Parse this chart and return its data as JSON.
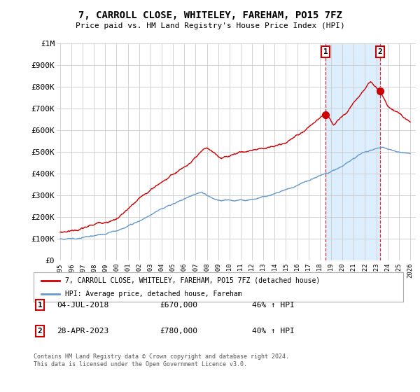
{
  "title": "7, CARROLL CLOSE, WHITELEY, FAREHAM, PO15 7FZ",
  "subtitle": "Price paid vs. HM Land Registry's House Price Index (HPI)",
  "title_fontsize": 10,
  "subtitle_fontsize": 8.5,
  "ylabel_values": [
    "£0",
    "£100K",
    "£200K",
    "£300K",
    "£400K",
    "£500K",
    "£600K",
    "£700K",
    "£800K",
    "£900K",
    "£1M"
  ],
  "yticks": [
    0,
    100000,
    200000,
    300000,
    400000,
    500000,
    600000,
    700000,
    800000,
    900000,
    1000000
  ],
  "xlim_start": 1994.7,
  "xlim_end": 2026.5,
  "ylim": [
    0,
    1000000
  ],
  "xtick_years": [
    1995,
    1996,
    1997,
    1998,
    1999,
    2000,
    2001,
    2002,
    2003,
    2004,
    2005,
    2006,
    2007,
    2008,
    2009,
    2010,
    2011,
    2012,
    2013,
    2014,
    2015,
    2016,
    2017,
    2018,
    2019,
    2020,
    2021,
    2022,
    2023,
    2024,
    2025,
    2026
  ],
  "hpi_color": "#6699cc",
  "price_color": "#cc0000",
  "shade_color": "#ddeeff",
  "marker1_date": 2018.51,
  "marker1_price": 670000,
  "marker1_label": "04-JUL-2018",
  "marker1_amount": "£670,000",
  "marker1_pct": "46% ↑ HPI",
  "marker2_date": 2023.32,
  "marker2_price": 780000,
  "marker2_label": "28-APR-2023",
  "marker2_amount": "£780,000",
  "marker2_pct": "40% ↑ HPI",
  "legend_line1": "7, CARROLL CLOSE, WHITELEY, FAREHAM, PO15 7FZ (detached house)",
  "legend_line2": "HPI: Average price, detached house, Fareham",
  "footnote": "Contains HM Land Registry data © Crown copyright and database right 2024.\nThis data is licensed under the Open Government Licence v3.0.",
  "background_color": "#ffffff",
  "grid_color": "#cccccc"
}
